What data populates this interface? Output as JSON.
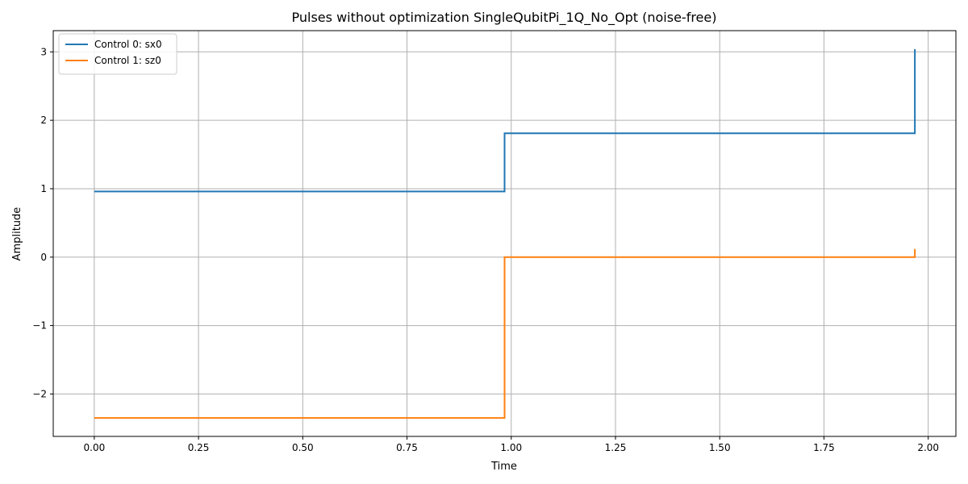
{
  "chart_data": {
    "type": "line",
    "title": "Pulses without optimization SingleQubitPi_1Q_No_Opt (noise-free)",
    "xlabel": "Time",
    "ylabel": "Amplitude",
    "xlim": [
      -0.0984,
      2.0664
    ],
    "ylim": [
      -2.62,
      3.31
    ],
    "x_ticks": [
      0.0,
      0.25,
      0.5,
      0.75,
      1.0,
      1.25,
      1.5,
      1.75,
      2.0
    ],
    "x_tick_labels": [
      "0.00",
      "0.25",
      "0.50",
      "0.75",
      "1.00",
      "1.25",
      "1.50",
      "1.75",
      "2.00"
    ],
    "y_ticks": [
      -2,
      -1,
      0,
      1,
      2,
      3
    ],
    "y_tick_labels": [
      "−2",
      "−1",
      "0",
      "1",
      "2",
      "3"
    ],
    "grid": true,
    "legend_position": "top-left",
    "step": "post",
    "x": [
      0.0,
      0.984,
      1.968
    ],
    "series": [
      {
        "name": "Control 0: sx0",
        "color": "#1f77b4",
        "values": [
          0.96,
          1.81,
          3.04
        ]
      },
      {
        "name": "Control 1: sz0",
        "color": "#ff7f0e",
        "values": [
          -2.35,
          0.0,
          0.12
        ]
      }
    ]
  }
}
